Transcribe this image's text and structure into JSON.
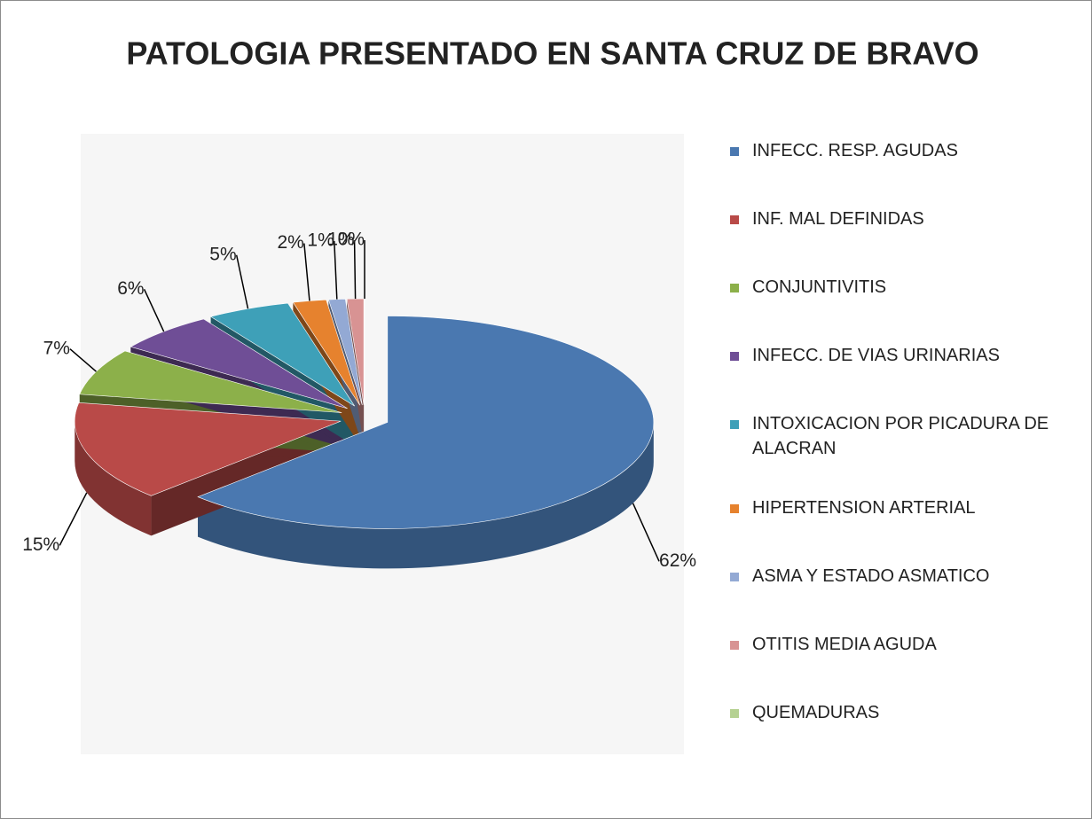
{
  "chart_data": {
    "type": "pie",
    "title": "PATOLOGIA PRESENTADO EN SANTA CRUZ DE BRAVO",
    "categories": [
      "INFECC. RESP. AGUDAS",
      "INF. MAL DEFINIDAS",
      "CONJUNTIVITIS",
      "INFECC. DE VIAS URINARIAS",
      "INTOXICACION POR PICADURA DE ALACRAN",
      "HIPERTENSION ARTERIAL",
      "ASMA Y ESTADO ASMATICO",
      "OTITIS MEDIA AGUDA",
      "QUEMADURAS"
    ],
    "values": [
      62,
      15,
      7,
      6,
      5,
      2,
      1,
      1,
      0
    ],
    "value_labels": [
      "62%",
      "15%",
      "7%",
      "6%",
      "5%",
      "2%",
      "1%",
      "1%",
      "0%"
    ],
    "colors": [
      "#4a78b0",
      "#b94a48",
      "#8cb04a",
      "#6f4e96",
      "#3ea0b8",
      "#e6822e",
      "#93a9d4",
      "#d89393",
      "#b5d192"
    ],
    "legend": "right"
  }
}
